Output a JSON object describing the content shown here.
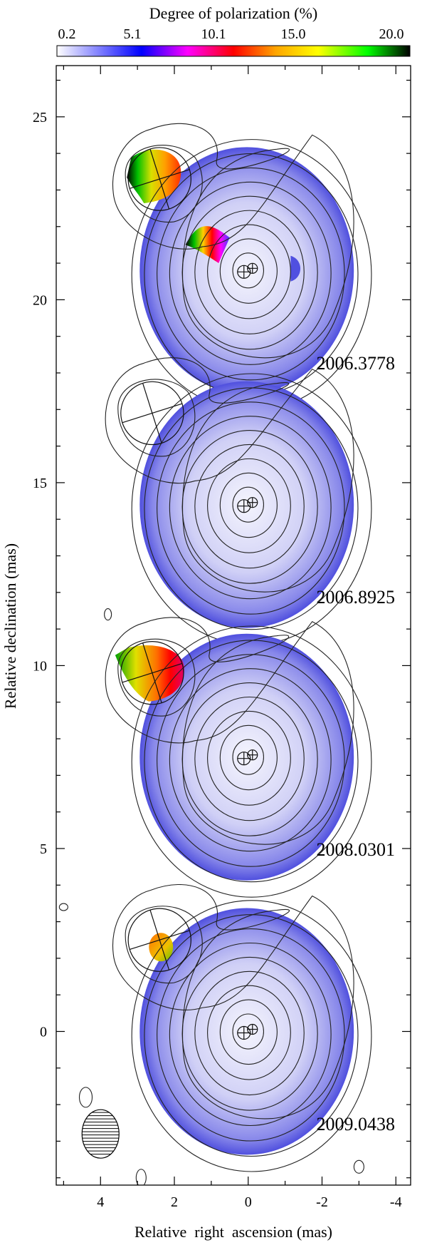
{
  "chart_data": {
    "type": "heatmap",
    "description_kind": "stacked VLBI polarization maps with total intensity contours",
    "colorbar": {
      "title": "Degree of polarization (%)",
      "ticks": [
        "0.2",
        "5.1",
        "10.1",
        "15.0",
        "20.0"
      ],
      "range": [
        0.2,
        20.0
      ],
      "colors": [
        "#ffffff",
        "#0000ff",
        "#ff00ff",
        "#ff0000",
        "#ffa500",
        "#ffff00",
        "#00ff00",
        "#000000"
      ]
    },
    "xlabel": "Relative  right  ascension (mas)",
    "ylabel": "Relative declination (mas)",
    "xlim": [
      5.2,
      -4.4
    ],
    "ylim": [
      -4.2,
      26.4
    ],
    "x_ticks": [
      4,
      2,
      0,
      -2,
      -4
    ],
    "x_tick_labels": [
      "4",
      "2",
      "0",
      "-2",
      "-4"
    ],
    "y_ticks": [
      0,
      5,
      10,
      15,
      20,
      25
    ],
    "y_tick_labels": [
      "0",
      "5",
      "10",
      "15",
      "20",
      "25"
    ],
    "epochs": [
      {
        "label": "2006.3778",
        "core": [
          0.0,
          20.8
        ],
        "jet": [
          2.4,
          23.3
        ],
        "core_pol_percent": 2.0,
        "jet_pol_percent": 13.0,
        "has_jet_pol": true
      },
      {
        "label": "2006.8925",
        "core": [
          0.0,
          14.4
        ],
        "jet": [
          2.6,
          16.9
        ],
        "core_pol_percent": 2.0,
        "jet_pol_percent": null,
        "has_jet_pol": false
      },
      {
        "label": "2008.0301",
        "core": [
          0.0,
          7.5
        ],
        "jet": [
          2.6,
          9.8
        ],
        "core_pol_percent": 2.0,
        "jet_pol_percent": 11.0,
        "has_jet_pol": true
      },
      {
        "label": "2009.0438",
        "core": [
          0.0,
          0.0
        ],
        "jet": [
          2.4,
          2.5
        ],
        "core_pol_percent": 2.0,
        "jet_pol_percent": 13.0,
        "has_jet_pol": true
      }
    ],
    "beam": {
      "center": [
        4.0,
        -2.8
      ]
    }
  }
}
